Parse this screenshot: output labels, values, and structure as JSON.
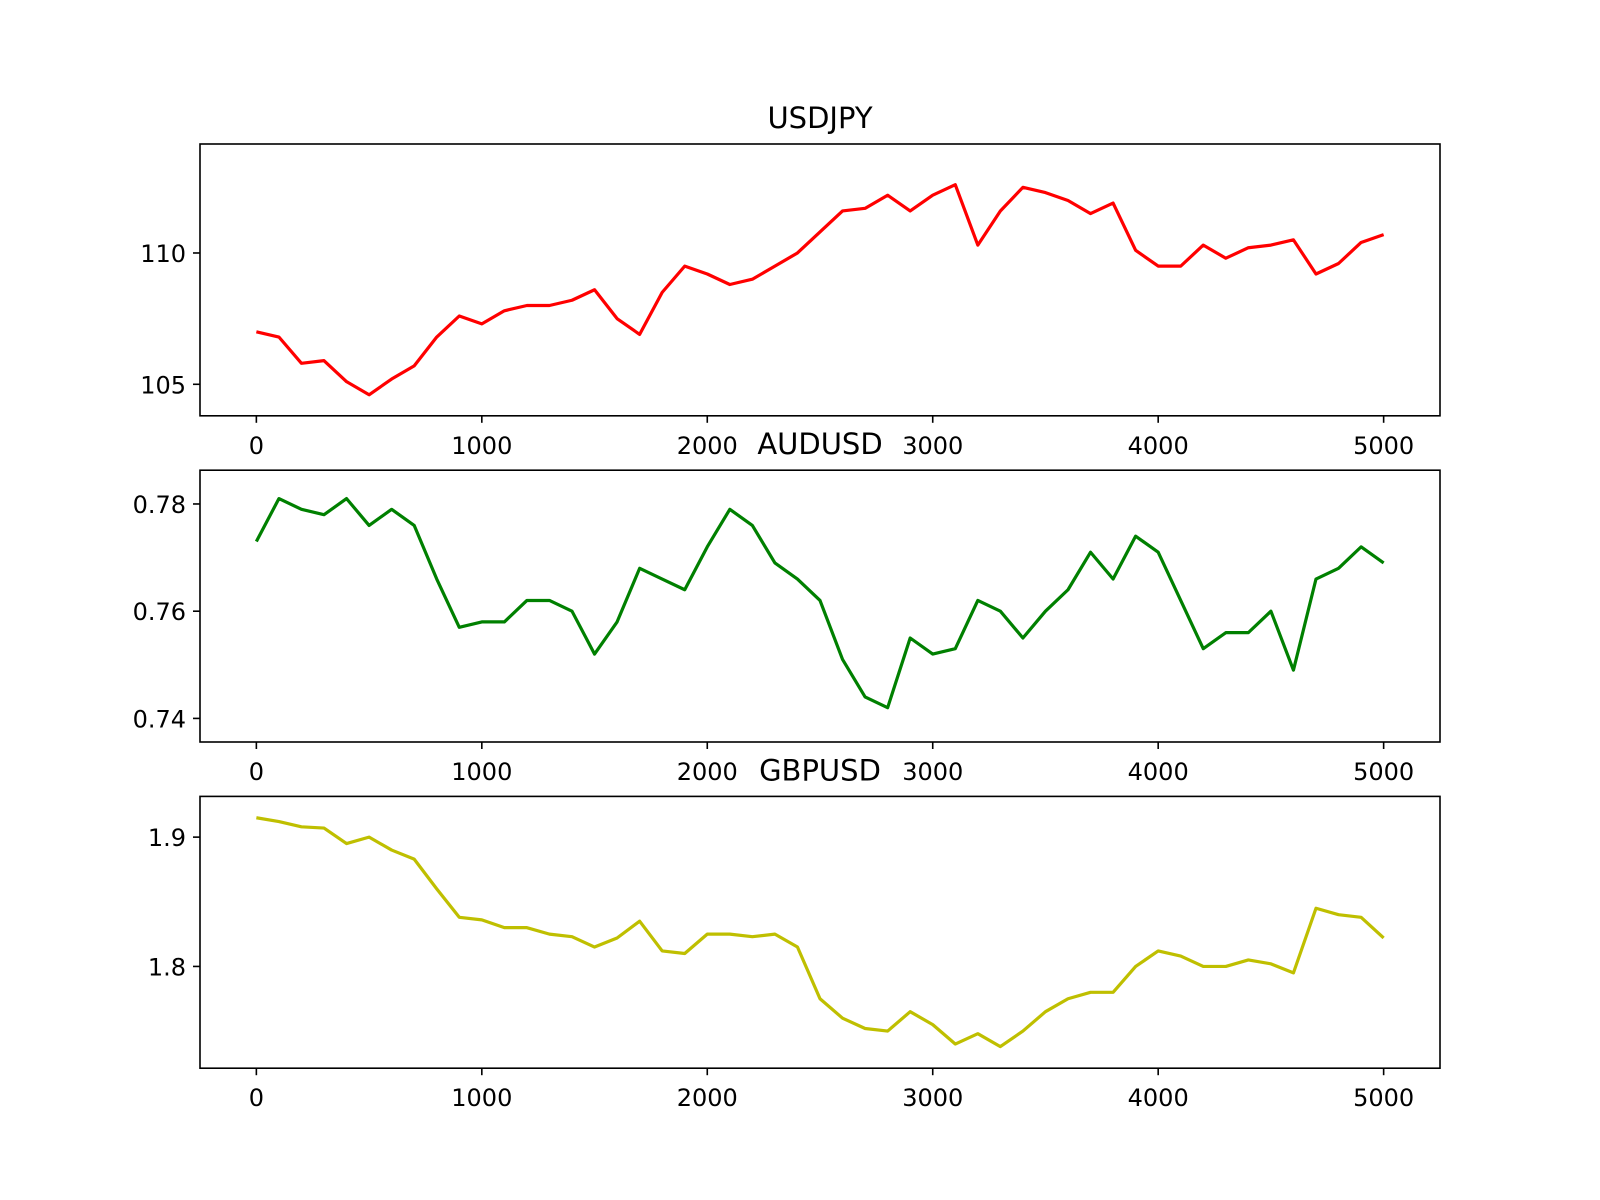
{
  "chart_data": [
    {
      "type": "line",
      "title": "USDJPY",
      "x": [
        0,
        100,
        200,
        300,
        400,
        500,
        600,
        700,
        800,
        900,
        1000,
        1100,
        1200,
        1300,
        1400,
        1500,
        1600,
        1700,
        1800,
        1900,
        2000,
        2100,
        2200,
        2300,
        2400,
        2500,
        2600,
        2700,
        2800,
        2900,
        3000,
        3100,
        3200,
        3300,
        3400,
        3500,
        3600,
        3700,
        3800,
        3900,
        4000,
        4100,
        4200,
        4300,
        4400,
        4500,
        4600,
        4700,
        4800,
        4900,
        5000
      ],
      "series": [
        {
          "name": "USDJPY",
          "color": "#ff0000",
          "values": [
            107.0,
            106.8,
            105.8,
            105.9,
            105.1,
            104.6,
            105.2,
            105.7,
            106.8,
            107.6,
            107.3,
            107.8,
            108.0,
            108.0,
            108.2,
            108.6,
            107.5,
            106.9,
            108.5,
            109.5,
            109.2,
            108.8,
            109.0,
            109.5,
            110.0,
            110.8,
            111.6,
            111.7,
            112.2,
            111.6,
            112.2,
            112.6,
            110.3,
            111.6,
            112.5,
            112.3,
            112.0,
            111.5,
            111.9,
            110.1,
            109.5,
            109.5,
            110.3,
            109.8,
            110.2,
            110.3,
            110.5,
            109.2,
            109.6,
            110.4,
            110.7
          ]
        }
      ],
      "xlim": [
        -250,
        5250
      ],
      "xticks": [
        0,
        1000,
        2000,
        3000,
        4000,
        5000
      ],
      "ylim": [
        103.8,
        114.15
      ],
      "yticks": [
        105,
        110
      ]
    },
    {
      "type": "line",
      "title": "AUDUSD",
      "x": [
        0,
        100,
        200,
        300,
        400,
        500,
        600,
        700,
        800,
        900,
        1000,
        1100,
        1200,
        1300,
        1400,
        1500,
        1600,
        1700,
        1800,
        1900,
        2000,
        2100,
        2200,
        2300,
        2400,
        2500,
        2600,
        2700,
        2800,
        2900,
        3000,
        3100,
        3200,
        3300,
        3400,
        3500,
        3600,
        3700,
        3800,
        3900,
        4000,
        4100,
        4200,
        4300,
        4400,
        4500,
        4600,
        4700,
        4800,
        4900,
        5000
      ],
      "series": [
        {
          "name": "AUDUSD",
          "color": "#008000",
          "values": [
            0.773,
            0.781,
            0.779,
            0.778,
            0.781,
            0.776,
            0.779,
            0.776,
            0.766,
            0.757,
            0.758,
            0.758,
            0.762,
            0.762,
            0.76,
            0.752,
            0.758,
            0.768,
            0.766,
            0.764,
            0.772,
            0.779,
            0.776,
            0.769,
            0.766,
            0.762,
            0.751,
            0.744,
            0.742,
            0.755,
            0.752,
            0.753,
            0.762,
            0.76,
            0.755,
            0.76,
            0.764,
            0.771,
            0.766,
            0.774,
            0.771,
            0.762,
            0.753,
            0.756,
            0.756,
            0.76,
            0.749,
            0.766,
            0.768,
            0.772,
            0.769
          ]
        }
      ],
      "xlim": [
        -250,
        5250
      ],
      "xticks": [
        0,
        1000,
        2000,
        3000,
        4000,
        5000
      ],
      "ylim": [
        0.7356,
        0.7863
      ],
      "yticks": [
        0.74,
        0.76,
        0.78
      ]
    },
    {
      "type": "line",
      "title": "GBPUSD",
      "x": [
        0,
        100,
        200,
        300,
        400,
        500,
        600,
        700,
        800,
        900,
        1000,
        1100,
        1200,
        1300,
        1400,
        1500,
        1600,
        1700,
        1800,
        1900,
        2000,
        2100,
        2200,
        2300,
        2400,
        2500,
        2600,
        2700,
        2800,
        2900,
        3000,
        3100,
        3200,
        3300,
        3400,
        3500,
        3600,
        3700,
        3800,
        3900,
        4000,
        4100,
        4200,
        4300,
        4400,
        4500,
        4600,
        4700,
        4800,
        4900,
        5000
      ],
      "series": [
        {
          "name": "GBPUSD",
          "color": "#bfbf00",
          "values": [
            1.915,
            1.912,
            1.908,
            1.907,
            1.895,
            1.9,
            1.89,
            1.883,
            1.86,
            1.838,
            1.836,
            1.83,
            1.83,
            1.825,
            1.823,
            1.815,
            1.822,
            1.835,
            1.812,
            1.81,
            1.825,
            1.825,
            1.823,
            1.825,
            1.815,
            1.775,
            1.76,
            1.752,
            1.75,
            1.765,
            1.755,
            1.74,
            1.748,
            1.738,
            1.75,
            1.765,
            1.775,
            1.78,
            1.78,
            1.8,
            1.812,
            1.808,
            1.8,
            1.8,
            1.805,
            1.802,
            1.795,
            1.845,
            1.84,
            1.838,
            1.822
          ]
        }
      ],
      "xlim": [
        -250,
        5250
      ],
      "xticks": [
        0,
        1000,
        2000,
        3000,
        4000,
        5000
      ],
      "ylim": [
        1.7213,
        1.9315
      ],
      "yticks": [
        1.8,
        {
          "value": 1.9,
          "label": "1.9"
        }
      ]
    }
  ]
}
